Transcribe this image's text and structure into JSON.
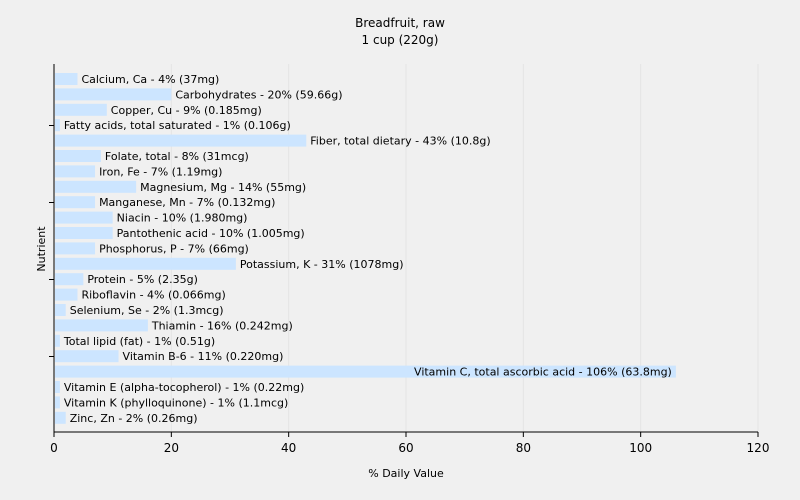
{
  "chart_data": {
    "type": "bar",
    "orientation": "horizontal",
    "title": "Breadfruit, raw",
    "subtitle": "1 cup (220g)",
    "xlabel": "% Daily Value",
    "ylabel": "Nutrient",
    "xlim": [
      0,
      120
    ],
    "xticks": [
      0,
      20,
      40,
      60,
      80,
      100,
      120
    ],
    "grid": true,
    "bar_color": "#cce5ff",
    "categories": [
      "Calcium, Ca",
      "Carbohydrates",
      "Copper, Cu",
      "Fatty acids, total saturated",
      "Fiber, total dietary",
      "Folate, total",
      "Iron, Fe",
      "Magnesium, Mg",
      "Manganese, Mn",
      "Niacin",
      "Pantothenic acid",
      "Phosphorus, P",
      "Potassium, K",
      "Protein",
      "Riboflavin",
      "Selenium, Se",
      "Thiamin",
      "Total lipid (fat)",
      "Vitamin B-6",
      "Vitamin C, total ascorbic acid",
      "Vitamin E (alpha-tocopherol)",
      "Vitamin K (phylloquinone)",
      "Zinc, Zn"
    ],
    "values": [
      4,
      20,
      9,
      1,
      43,
      8,
      7,
      14,
      7,
      10,
      10,
      7,
      31,
      5,
      4,
      2,
      16,
      1,
      11,
      106,
      1,
      1,
      2
    ],
    "labels": [
      "Calcium, Ca - 4% (37mg)",
      "Carbohydrates - 20% (59.66g)",
      "Copper, Cu - 9% (0.185mg)",
      "Fatty acids, total saturated - 1% (0.106g)",
      "Fiber, total dietary - 43% (10.8g)",
      "Folate, total - 8% (31mcg)",
      "Iron, Fe - 7% (1.19mg)",
      "Magnesium, Mg - 14% (55mg)",
      "Manganese, Mn - 7% (0.132mg)",
      "Niacin - 10% (1.980mg)",
      "Pantothenic acid - 10% (1.005mg)",
      "Phosphorus, P - 7% (66mg)",
      "Potassium, K - 31% (1078mg)",
      "Protein - 5% (2.35g)",
      "Riboflavin - 4% (0.066mg)",
      "Selenium, Se - 2% (1.3mcg)",
      "Thiamin - 16% (0.242mg)",
      "Total lipid (fat) - 1% (0.51g)",
      "Vitamin B-6 - 11% (0.220mg)",
      "Vitamin C, total ascorbic acid - 106% (63.8mg)",
      "Vitamin E (alpha-tocopherol) - 1% (0.22mg)",
      "Vitamin K (phylloquinone) - 1% (1.1mcg)",
      "Zinc, Zn - 2% (0.26mg)"
    ]
  }
}
